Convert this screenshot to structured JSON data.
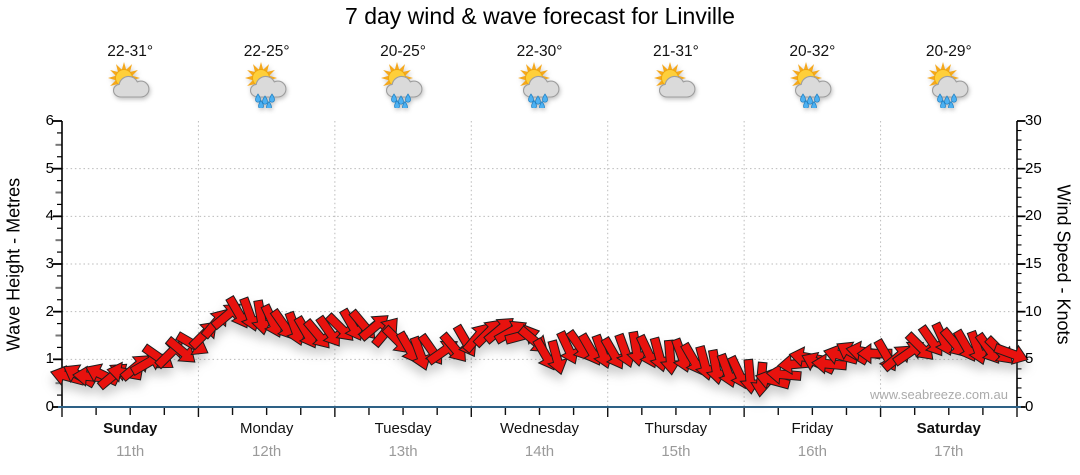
{
  "title": "7 day wind & wave forecast for Linville",
  "watermark": "www.seabreeze.com.au",
  "left_axis": {
    "title": "Wave Height - Metres",
    "unit": "m",
    "min": 0,
    "max": 6,
    "major_ticks": [
      0,
      1,
      2,
      3,
      4,
      5,
      6
    ],
    "minor_step": 0.25
  },
  "right_axis": {
    "title": "Wind Speed - Knots",
    "unit": "knots",
    "min": 0,
    "max": 30,
    "major_ticks": [
      0,
      5,
      10,
      15,
      20,
      25,
      30
    ],
    "minor_step": 1
  },
  "days": [
    {
      "name": "Sunday",
      "date": "11th",
      "temp": "22-31°",
      "icon": "sun-cloud",
      "bold": true
    },
    {
      "name": "Monday",
      "date": "12th",
      "temp": "22-25°",
      "icon": "sun-cloud-rain",
      "bold": false
    },
    {
      "name": "Tuesday",
      "date": "13th",
      "temp": "20-25°",
      "icon": "sun-cloud-rain",
      "bold": false
    },
    {
      "name": "Wednesday",
      "date": "14th",
      "temp": "22-30°",
      "icon": "sun-cloud-rain",
      "bold": false
    },
    {
      "name": "Thursday",
      "date": "15th",
      "temp": "21-31°",
      "icon": "sun-cloud",
      "bold": false
    },
    {
      "name": "Friday",
      "date": "16th",
      "temp": "20-32°",
      "icon": "sun-cloud-rain",
      "bold": false
    },
    {
      "name": "Saturday",
      "date": "17th",
      "temp": "20-29°",
      "icon": "sun-cloud-rain",
      "bold": true
    }
  ],
  "colors": {
    "arrow_red": "#e8120e",
    "arrow_outline": "#1c1c1c",
    "x_axis_blue": "#2e6186",
    "axis_black": "#000000",
    "grid_gray": "#bbbbbb",
    "minor_tick_gray": "#777777",
    "date_gray": "#9a9a9a",
    "watermark_gray": "#ababab"
  },
  "chart_data": {
    "type": "line",
    "style": "wind-direction-arrows",
    "title": "7 day wind & wave forecast for Linville",
    "xlabel_days": [
      "Sunday 11th",
      "Monday 12th",
      "Tuesday 13th",
      "Wednesday 14th",
      "Thursday 15th",
      "Friday 16th",
      "Saturday 17th"
    ],
    "ylabel_left": "Wave Height - Metres",
    "ylabel_right": "Wind Speed - Knots",
    "ylim_left_metres": [
      0,
      6
    ],
    "ylim_right_knots": [
      0,
      30
    ],
    "grid": true,
    "legend": false,
    "points_per_day": 12,
    "interval_hours": 2,
    "series": [
      {
        "name": "Wind speed",
        "unit": "knots",
        "values": [
          3.2,
          3.3,
          3.2,
          3.4,
          3.3,
          3.6,
          4.2,
          4.6,
          5.2,
          5.6,
          5.9,
          6.6,
          7.6,
          8.8,
          9.6,
          9.9,
          9.7,
          9.4,
          9.0,
          8.6,
          8.2,
          7.8,
          7.6,
          7.9,
          8.3,
          8.6,
          8.6,
          8.4,
          7.9,
          7.0,
          6.2,
          5.6,
          6.0,
          5.8,
          6.2,
          6.9,
          7.3,
          7.8,
          8.1,
          7.9,
          7.5,
          7.0,
          5.5,
          5.2,
          6.2,
          6.4,
          6.0,
          5.8,
          5.6,
          5.9,
          6.1,
          5.8,
          5.5,
          5.2,
          5.4,
          5.0,
          4.6,
          4.2,
          3.8,
          3.6,
          3.2,
          2.9,
          2.8,
          3.4,
          4.5,
          5.2,
          4.6,
          4.5,
          5.4,
          5.7,
          5.8,
          5.6,
          5.4,
          5.2,
          5.7,
          6.3,
          6.9,
          7.1,
          6.7,
          6.4,
          6.2,
          6.1,
          5.9,
          5.6
        ],
        "directions_deg": [
          195,
          210,
          185,
          205,
          -40,
          190,
          -40,
          -30,
          35,
          -45,
          40,
          30,
          -45,
          -50,
          -40,
          60,
          70,
          80,
          65,
          55,
          70,
          60,
          50,
          55,
          45,
          60,
          50,
          -40,
          -50,
          45,
          60,
          70,
          55,
          -35,
          50,
          60,
          -50,
          -45,
          -40,
          -30,
          -15,
          40,
          60,
          75,
          65,
          55,
          60,
          70,
          60,
          70,
          80,
          65,
          75,
          85,
          70,
          60,
          75,
          80,
          70,
          65,
          85,
          95,
          195,
          185,
          175,
          190,
          205,
          185,
          195,
          210,
          190,
          180,
          60,
          -40,
          -35,
          45,
          55,
          65,
          50,
          60,
          70,
          55,
          45,
          20
        ]
      }
    ]
  }
}
